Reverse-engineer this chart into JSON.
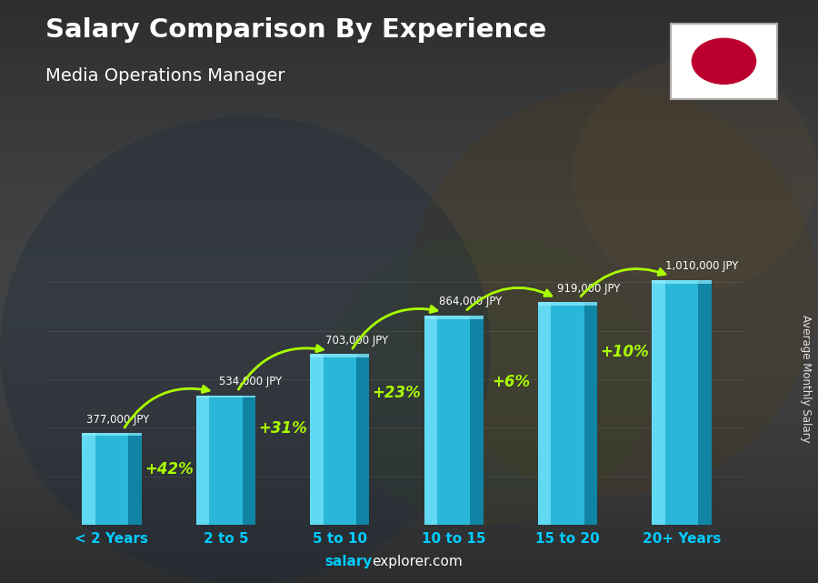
{
  "title": "Salary Comparison By Experience",
  "subtitle": "Media Operations Manager",
  "categories": [
    "< 2 Years",
    "2 to 5",
    "5 to 10",
    "10 to 15",
    "15 to 20",
    "20+ Years"
  ],
  "values": [
    377000,
    534000,
    703000,
    864000,
    919000,
    1010000
  ],
  "labels": [
    "377,000 JPY",
    "534,000 JPY",
    "703,000 JPY",
    "864,000 JPY",
    "919,000 JPY",
    "1,010,000 JPY"
  ],
  "pct_changes": [
    "+42%",
    "+31%",
    "+23%",
    "+6%",
    "+10%"
  ],
  "bar_color_main": "#29b6d8",
  "bar_color_light": "#6de0f7",
  "bar_color_dark": "#0e7fa0",
  "background_color": "#2d2d2d",
  "title_color": "#ffffff",
  "subtitle_color": "#ffffff",
  "label_color": "#ffffff",
  "pct_color": "#aaff00",
  "xlabel_color": "#00ccff",
  "watermark_cyan": "salary",
  "watermark_white": "explorer.com",
  "ylabel": "Average Monthly Salary",
  "ylim_max": 1250000,
  "flag_color": "#bc002d"
}
